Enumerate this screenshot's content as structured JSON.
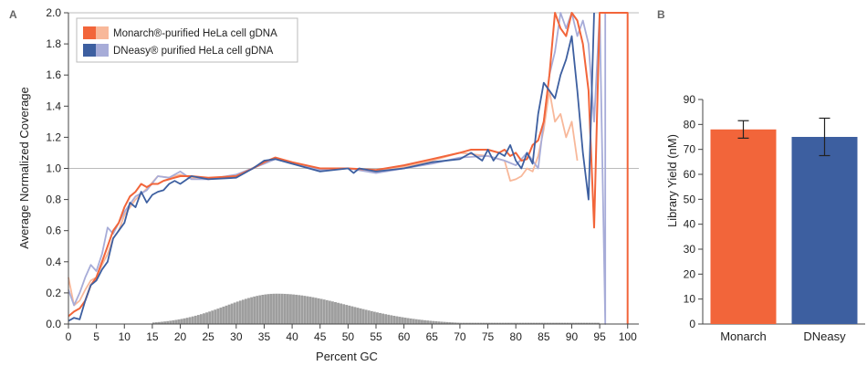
{
  "chart_data": [
    {
      "panel": "A",
      "type": "line",
      "xlabel": "Percent GC",
      "ylabel": "Average Normalized Coverage",
      "xlim": [
        0,
        102
      ],
      "ylim": [
        0,
        2.0
      ],
      "xticks": [
        0,
        5,
        10,
        15,
        20,
        25,
        30,
        35,
        40,
        45,
        50,
        55,
        60,
        65,
        70,
        75,
        80,
        85,
        90,
        95,
        100
      ],
      "yticks": [
        0,
        0.2,
        0.4,
        0.6,
        0.8,
        1.0,
        1.2,
        1.4,
        1.6,
        1.8,
        2.0
      ],
      "reference_line": 1.0,
      "legend": [
        {
          "label": "Monarch®-purified HeLa cell gDNA",
          "colors": [
            "#f2653a",
            "#f8b89a"
          ]
        },
        {
          "label": "DNeasy® purified HeLa cell gDNA",
          "colors": [
            "#3d5fa0",
            "#a7acd8"
          ]
        }
      ],
      "series": [
        {
          "name": "Monarch®-purified HeLa cell gDNA",
          "replicate": 1,
          "color": "#f2653a",
          "x": [
            0,
            1,
            2,
            3,
            4,
            5,
            6,
            7,
            8,
            9,
            10,
            11,
            12,
            13,
            14,
            15,
            16,
            17,
            18,
            19,
            20,
            22,
            25,
            30,
            33,
            35,
            37,
            40,
            45,
            50,
            55,
            60,
            65,
            70,
            72,
            75,
            77,
            78,
            79,
            80,
            81,
            82,
            83,
            84,
            85,
            86,
            87,
            88,
            89,
            90,
            91,
            92,
            93,
            94,
            95,
            100,
            100
          ],
          "y": [
            0.05,
            0.08,
            0.1,
            0.15,
            0.25,
            0.3,
            0.4,
            0.5,
            0.6,
            0.65,
            0.75,
            0.82,
            0.85,
            0.9,
            0.88,
            0.9,
            0.9,
            0.92,
            0.93,
            0.94,
            0.95,
            0.95,
            0.94,
            0.95,
            1.0,
            1.04,
            1.07,
            1.04,
            1.0,
            1.0,
            0.99,
            1.02,
            1.06,
            1.1,
            1.12,
            1.12,
            1.1,
            1.12,
            1.08,
            1.1,
            1.05,
            1.06,
            1.15,
            1.18,
            1.3,
            1.6,
            2.0,
            1.9,
            1.85,
            2.0,
            1.95,
            1.8,
            1.5,
            0.62,
            2.0,
            2.0,
            0
          ]
        },
        {
          "name": "Monarch®-purified HeLa cell gDNA",
          "replicate": 2,
          "color": "#f8b89a",
          "x": [
            0,
            1,
            2,
            3,
            4,
            5,
            6,
            7,
            8,
            9,
            10,
            12,
            14,
            16,
            18,
            20,
            22,
            25,
            30,
            35,
            37,
            40,
            45,
            50,
            55,
            60,
            65,
            70,
            75,
            78,
            79,
            80,
            81,
            82,
            83,
            84,
            85,
            86,
            87,
            88,
            89,
            90,
            91
          ],
          "y": [
            0.3,
            0.12,
            0.15,
            0.22,
            0.28,
            0.3,
            0.38,
            0.45,
            0.55,
            0.6,
            0.7,
            0.8,
            0.87,
            0.95,
            0.94,
            0.96,
            0.94,
            0.93,
            0.95,
            1.04,
            1.06,
            1.04,
            0.99,
            1.0,
            0.98,
            1.01,
            1.05,
            1.1,
            1.08,
            1.05,
            0.92,
            0.93,
            0.95,
            1.0,
            0.98,
            1.08,
            1.25,
            1.5,
            1.3,
            1.35,
            1.2,
            1.3,
            1.05
          ]
        },
        {
          "name": "DNeasy® purified HeLa cell gDNA",
          "replicate": 1,
          "color": "#3d5fa0",
          "x": [
            0,
            1,
            2,
            3,
            4,
            5,
            6,
            7,
            8,
            9,
            10,
            11,
            12,
            13,
            14,
            15,
            16,
            17,
            18,
            19,
            20,
            22,
            25,
            30,
            33,
            35,
            37,
            40,
            45,
            50,
            51,
            52,
            55,
            60,
            65,
            70,
            72,
            74,
            75,
            76,
            77,
            78,
            79,
            80,
            81,
            82,
            83,
            84,
            85,
            86,
            87,
            88,
            89,
            90,
            91,
            92,
            93,
            94
          ],
          "y": [
            0.02,
            0.04,
            0.03,
            0.15,
            0.25,
            0.28,
            0.35,
            0.4,
            0.55,
            0.6,
            0.65,
            0.78,
            0.75,
            0.85,
            0.78,
            0.83,
            0.85,
            0.86,
            0.9,
            0.92,
            0.9,
            0.95,
            0.93,
            0.94,
            1.0,
            1.05,
            1.06,
            1.03,
            0.98,
            1.0,
            0.97,
            1.0,
            0.98,
            1.0,
            1.04,
            1.06,
            1.1,
            1.05,
            1.12,
            1.05,
            1.1,
            1.08,
            1.15,
            1.05,
            1.0,
            1.1,
            1.03,
            1.35,
            1.55,
            1.5,
            1.45,
            1.6,
            1.7,
            1.85,
            1.5,
            1.1,
            0.8,
            2.0
          ]
        },
        {
          "name": "DNeasy® purified HeLa cell gDNA",
          "replicate": 2,
          "color": "#a7acd8",
          "x": [
            0,
            1,
            2,
            3,
            4,
            5,
            6,
            7,
            8,
            9,
            10,
            12,
            14,
            16,
            18,
            20,
            22,
            25,
            30,
            35,
            37,
            40,
            45,
            50,
            55,
            60,
            65,
            70,
            75,
            78,
            80,
            82,
            84,
            85,
            86,
            87,
            88,
            89,
            90,
            91,
            92,
            93,
            94,
            95,
            96,
            96
          ],
          "y": [
            0.22,
            0.12,
            0.2,
            0.3,
            0.38,
            0.34,
            0.45,
            0.62,
            0.58,
            0.65,
            0.72,
            0.82,
            0.86,
            0.95,
            0.94,
            0.98,
            0.93,
            0.93,
            0.96,
            1.03,
            1.06,
            1.03,
            0.99,
            1.0,
            0.97,
            1.0,
            1.03,
            1.07,
            1.08,
            1.05,
            1.02,
            1.1,
            1.0,
            1.3,
            1.6,
            1.75,
            2.0,
            1.9,
            2.0,
            1.85,
            1.95,
            1.8,
            1.3,
            2.0,
            0,
            2.0
          ]
        }
      ],
      "histogram": {
        "color": "#9e9e9e",
        "x_start": 15,
        "x_end": 95,
        "bin_width": 0.5,
        "peak_x": 37,
        "peak_y": 0.195,
        "left_sigma": 9,
        "right_sigma": 13,
        "floor": 0.008
      }
    },
    {
      "panel": "B",
      "type": "bar",
      "xlabel": "",
      "ylabel": "Library Yield (nM)",
      "ylim": [
        0,
        90
      ],
      "yticks": [
        0,
        10,
        20,
        30,
        40,
        50,
        60,
        70,
        80,
        90
      ],
      "categories": [
        "Monarch",
        "DNeasy"
      ],
      "values": [
        78,
        75
      ],
      "error": [
        3.5,
        7.5
      ],
      "colors": [
        "#f2653a",
        "#3d5fa0"
      ]
    }
  ],
  "legend_a": {
    "line1": "Monarch®-purified HeLa cell gDNA",
    "line2": "DNeasy® purified HeLa cell gDNA"
  },
  "labels": {
    "panel_a": "A",
    "panel_b": "B"
  }
}
